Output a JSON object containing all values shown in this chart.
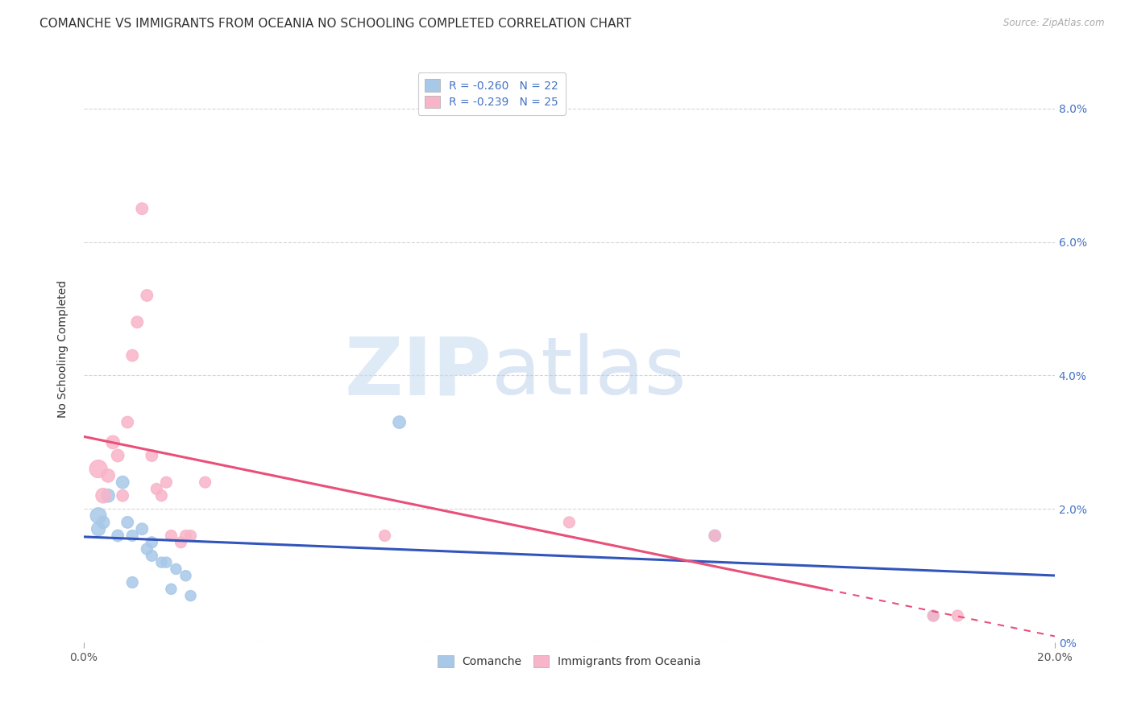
{
  "title": "COMANCHE VS IMMIGRANTS FROM OCEANIA NO SCHOOLING COMPLETED CORRELATION CHART",
  "source": "Source: ZipAtlas.com",
  "ylabel": "No Schooling Completed",
  "comanche_points": [
    [
      0.003,
      0.019,
      40
    ],
    [
      0.003,
      0.017,
      30
    ],
    [
      0.004,
      0.018,
      25
    ],
    [
      0.005,
      0.022,
      28
    ],
    [
      0.007,
      0.016,
      22
    ],
    [
      0.008,
      0.024,
      25
    ],
    [
      0.009,
      0.018,
      22
    ],
    [
      0.01,
      0.016,
      20
    ],
    [
      0.01,
      0.009,
      20
    ],
    [
      0.012,
      0.017,
      22
    ],
    [
      0.013,
      0.014,
      20
    ],
    [
      0.014,
      0.013,
      20
    ],
    [
      0.014,
      0.015,
      20
    ],
    [
      0.016,
      0.012,
      18
    ],
    [
      0.017,
      0.012,
      18
    ],
    [
      0.018,
      0.008,
      18
    ],
    [
      0.019,
      0.011,
      18
    ],
    [
      0.021,
      0.01,
      18
    ],
    [
      0.022,
      0.007,
      18
    ],
    [
      0.065,
      0.033,
      25
    ],
    [
      0.13,
      0.016,
      22
    ],
    [
      0.175,
      0.004,
      20
    ]
  ],
  "oceania_points": [
    [
      0.003,
      0.026,
      50
    ],
    [
      0.004,
      0.022,
      35
    ],
    [
      0.005,
      0.025,
      28
    ],
    [
      0.006,
      0.03,
      28
    ],
    [
      0.007,
      0.028,
      25
    ],
    [
      0.008,
      0.022,
      22
    ],
    [
      0.009,
      0.033,
      22
    ],
    [
      0.01,
      0.043,
      22
    ],
    [
      0.011,
      0.048,
      22
    ],
    [
      0.012,
      0.065,
      22
    ],
    [
      0.013,
      0.052,
      22
    ],
    [
      0.014,
      0.028,
      22
    ],
    [
      0.015,
      0.023,
      20
    ],
    [
      0.016,
      0.022,
      20
    ],
    [
      0.017,
      0.024,
      20
    ],
    [
      0.018,
      0.016,
      20
    ],
    [
      0.02,
      0.015,
      20
    ],
    [
      0.021,
      0.016,
      20
    ],
    [
      0.022,
      0.016,
      20
    ],
    [
      0.025,
      0.024,
      20
    ],
    [
      0.062,
      0.016,
      20
    ],
    [
      0.1,
      0.018,
      20
    ],
    [
      0.13,
      0.016,
      20
    ],
    [
      0.175,
      0.004,
      20
    ],
    [
      0.18,
      0.004,
      20
    ]
  ],
  "comanche_color": "#a8c8e8",
  "oceania_color": "#f8b4c8",
  "comanche_line_color": "#3355bb",
  "oceania_line_color": "#e8507a",
  "background_color": "#ffffff",
  "grid_color": "#cccccc",
  "title_fontsize": 11,
  "axis_label_fontsize": 10,
  "tick_fontsize": 10,
  "legend_fontsize": 10,
  "watermark_zip": "ZIP",
  "watermark_atlas": "atlas",
  "xlim": [
    0.0,
    0.2
  ],
  "ylim": [
    0.0,
    0.088
  ],
  "yticks": [
    0.0,
    0.02,
    0.04,
    0.06,
    0.08
  ],
  "ytick_labels": [
    "0%",
    "2.0%",
    "4.0%",
    "6.0%",
    "8.0%"
  ],
  "xticks": [
    0.0,
    0.2
  ],
  "xtick_labels": [
    "0.0%",
    "20.0%"
  ],
  "comanche_line_intercept": 0.0175,
  "comanche_line_slope": -0.075,
  "oceania_line_intercept": 0.03,
  "oceania_line_slope": -0.1
}
